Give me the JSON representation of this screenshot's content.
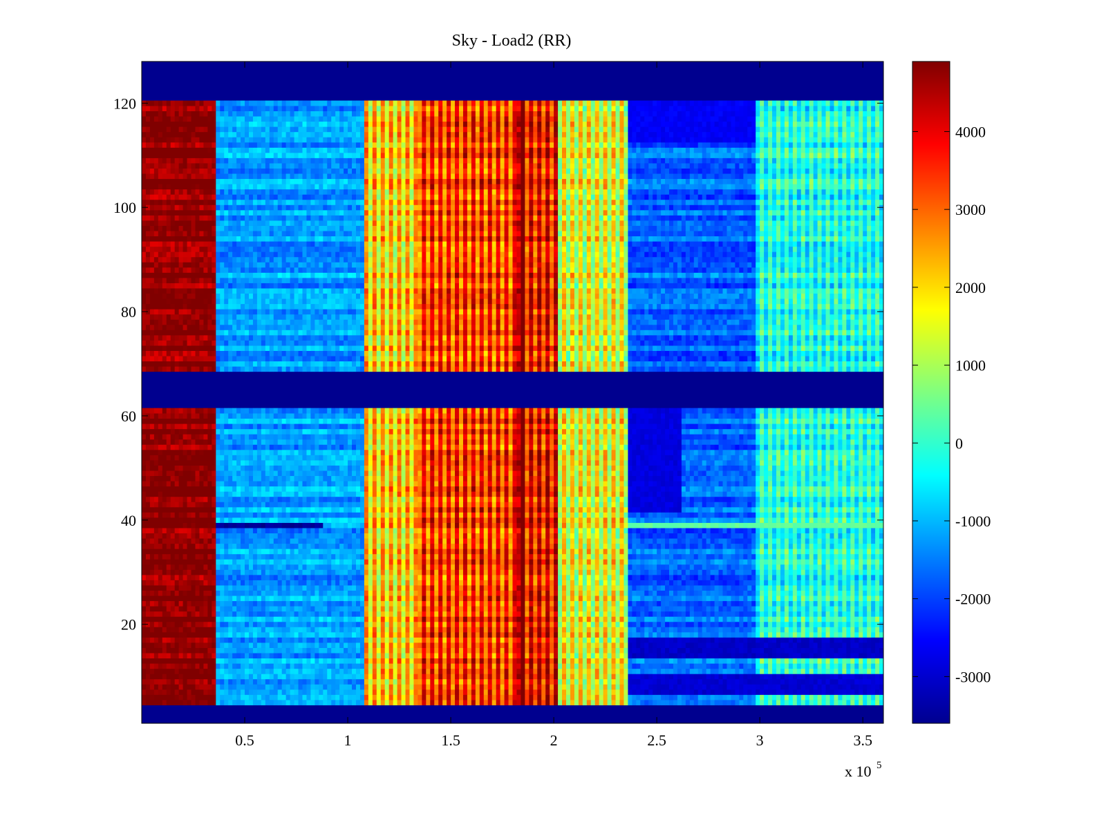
{
  "chart_data": {
    "type": "heatmap",
    "title": "Sky - Load2 (RR)",
    "xlabel": "",
    "ylabel": "",
    "x_scale_note": "x 10",
    "x_scale_exponent": "5",
    "xlim": [
      0.0,
      3.6
    ],
    "ylim": [
      1,
      128
    ],
    "x_ticks": [
      0.5,
      1,
      1.5,
      2,
      2.5,
      3,
      3.5
    ],
    "x_tick_labels": [
      "0.5",
      "1",
      "1.5",
      "2",
      "2.5",
      "3",
      "3.5"
    ],
    "y_ticks": [
      20,
      40,
      60,
      80,
      100,
      120
    ],
    "y_tick_labels": [
      "20",
      "40",
      "60",
      "80",
      "100",
      "120"
    ],
    "colorbar": {
      "colormap": "jet",
      "clim": [
        -3600,
        4900
      ],
      "ticks": [
        4000,
        3000,
        2000,
        1000,
        0,
        -1000,
        -2000,
        -3000
      ],
      "tick_labels": [
        "4000",
        "3000",
        "2000",
        "1000",
        "0",
        "-1000",
        "-2000",
        "-3000"
      ]
    },
    "masked_row_bands": [
      {
        "y_from": 1,
        "y_to": 4,
        "value": -3600
      },
      {
        "y_from": 62,
        "y_to": 68,
        "value": -3600
      },
      {
        "y_from": 121,
        "y_to": 128,
        "value": -3600
      }
    ],
    "column_segments": [
      {
        "x_from": 0.0,
        "x_to": 0.36,
        "value": 4800
      },
      {
        "x_from": 0.36,
        "x_to": 1.08,
        "value": -1200
      },
      {
        "x_from": 1.08,
        "x_to": 1.35,
        "value": 1300
      },
      {
        "x_from": 1.35,
        "x_to": 1.82,
        "value": 2600
      },
      {
        "x_from": 1.82,
        "x_to": 1.85,
        "value": 4300
      },
      {
        "x_from": 1.85,
        "x_to": 2.02,
        "value": 3000
      },
      {
        "x_from": 2.02,
        "x_to": 2.36,
        "value": 800
      },
      {
        "x_from": 2.36,
        "x_to": 2.98,
        "value": -1700
      },
      {
        "x_from": 2.98,
        "x_to": 3.6,
        "value": -600
      }
    ],
    "anomalies": [
      {
        "label": "row 39 low",
        "y": 39,
        "x_from": 0.36,
        "x_to": 0.88,
        "value": -3400
      },
      {
        "label": "low block rows 42-61",
        "y_from": 42,
        "y_to": 61,
        "x_from": 2.36,
        "x_to": 2.62,
        "value": -2800
      },
      {
        "label": "low rows 14-17",
        "y_from": 14,
        "y_to": 17,
        "x_from": 2.36,
        "x_to": 3.6,
        "value": -3000
      },
      {
        "label": "low rows 7-10",
        "y_from": 7,
        "y_to": 10,
        "x_from": 2.36,
        "x_to": 3.6,
        "value": -2900
      },
      {
        "label": "low rows 113-120",
        "y_from": 113,
        "y_to": 120,
        "x_from": 2.36,
        "x_to": 2.98,
        "value": -2600
      },
      {
        "label": "row 39 band",
        "y": 39,
        "x_from": 2.36,
        "x_to": 3.6,
        "value": 400
      }
    ]
  }
}
